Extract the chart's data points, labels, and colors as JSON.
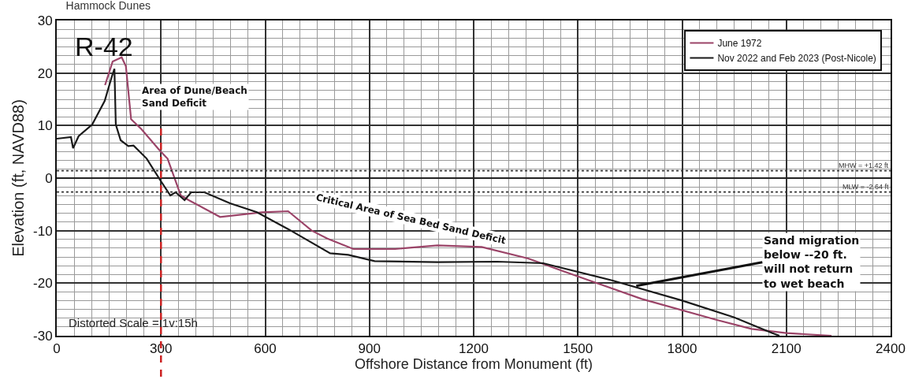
{
  "chart_data": {
    "type": "line",
    "title": "Hammock Dunes",
    "xlabel": "Offshore Distance from Monument (ft)",
    "ylabel": "Elevation (ft, NAVD88)",
    "xlim": [
      0,
      2400
    ],
    "xticks": [
      0,
      300,
      600,
      900,
      1200,
      1500,
      1800,
      2100,
      2400
    ],
    "ylim": [
      -30,
      30
    ],
    "yticks": [
      -30,
      -20,
      -10,
      0,
      10,
      20,
      30
    ],
    "grid": true,
    "legend": "top right",
    "marker": "none",
    "line_style": "solid",
    "series": [
      {
        "name": "June 1972",
        "color": "#9b4468",
        "x": [
          139,
          161,
          187,
          199,
          214,
          244,
          297,
          319,
          357,
          380,
          470,
          591,
          666,
          734,
          779,
          854,
          974,
          1096,
          1223,
          1357,
          1457,
          1684,
          1900,
          2000,
          2100,
          2230
        ],
        "values": [
          17.7,
          22.2,
          23,
          21.3,
          11.2,
          9.3,
          5.2,
          3.7,
          -3.3,
          -4.2,
          -7.4,
          -6.5,
          -6.3,
          -10,
          -11.5,
          -13.5,
          -13.5,
          -12.8,
          -13.1,
          -15.3,
          -17.7,
          -23,
          -27,
          -28.7,
          -29.5,
          -30
        ]
      },
      {
        "name": "Nov 2022 and Feb 2023 (Post-Nicole)",
        "color": "#1a1a1a",
        "x": [
          0,
          41,
          47,
          63,
          102,
          138,
          158,
          166,
          170,
          184,
          206,
          221,
          259,
          297,
          327,
          342,
          368,
          387,
          425,
          499,
          576,
          666,
          787,
          839,
          915,
          1096,
          1267,
          1400,
          1600,
          1800,
          1950,
          2060,
          2080
        ],
        "values": [
          7.5,
          7.8,
          5.7,
          8,
          10.2,
          14.7,
          19.2,
          20.8,
          10.2,
          7.2,
          6.1,
          6.2,
          3.7,
          -0.3,
          -3.3,
          -2.7,
          -4.2,
          -2.7,
          -2.7,
          -4.8,
          -6.5,
          -9.7,
          -14.3,
          -14.6,
          -15.8,
          -16,
          -15.9,
          -16.2,
          -19.5,
          -23.3,
          -26.5,
          -29.5,
          -30
        ]
      }
    ],
    "ref_lines": [
      {
        "axis": "y",
        "value": 1.42,
        "label": "MHW = +1.42 ft",
        "color": "#333333",
        "line_style": "dotted"
      },
      {
        "axis": "y",
        "value": -2.64,
        "label": "MLW = -2.64 ft",
        "color": "#333333",
        "line_style": "dotted"
      },
      {
        "axis": "y",
        "value": 0,
        "label": null,
        "color": "#222222",
        "line_style": "solid"
      },
      {
        "axis": "x",
        "value": 300,
        "label": null,
        "color": "#cc2222",
        "line_style": "dashed"
      }
    ],
    "annotations": [
      "R-42",
      "Area of Dune/Beach\nSand Deficit",
      "Critical Area of Sea Bed Sand Deficit",
      {
        "text": "Sand migration\nbelow --20 ft.\nwill not return\nto wet beach",
        "x": 1668,
        "y": -20.5
      },
      "Distorted Scale = 1v:15h"
    ]
  }
}
